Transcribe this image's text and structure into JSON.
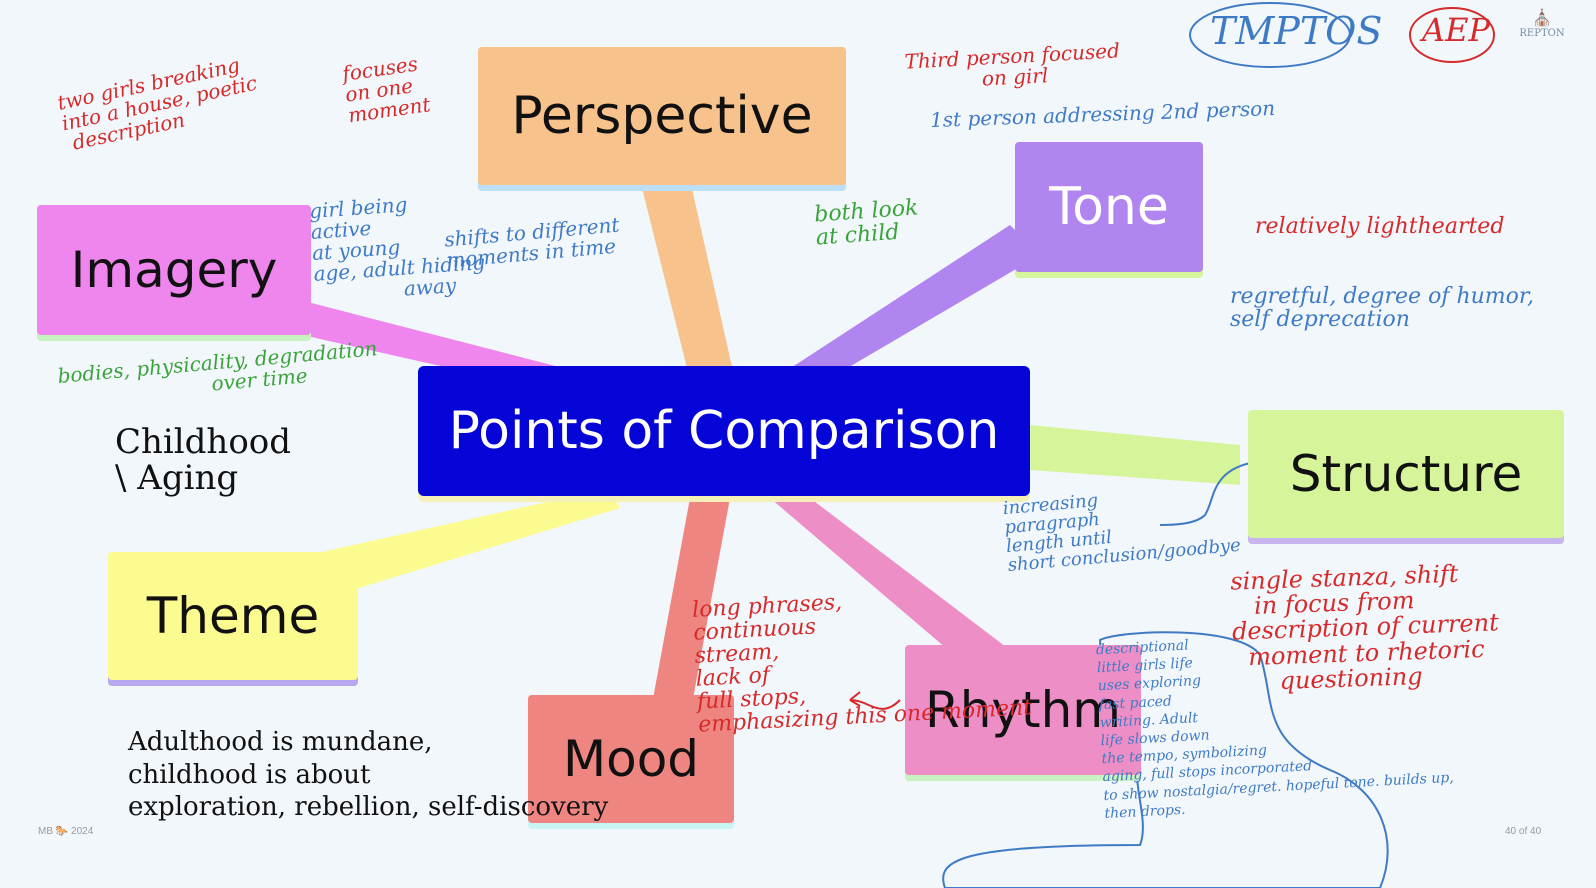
{
  "slide": {
    "center_label": "Points of Comparison",
    "nodes": {
      "perspective": "Perspective",
      "tone": "Tone",
      "imagery": "Imagery",
      "structure": "Structure",
      "theme": "Theme",
      "mood": "Mood",
      "rhythm": "Rhythm"
    },
    "colors": {
      "center": "#0505d8",
      "perspective": "#f7c28c",
      "tone": "#b185f0",
      "imagery": "#ee86ee",
      "structure": "#d6f59a",
      "theme": "#fbfb8f",
      "mood": "#ee8580",
      "rhythm": "#ee8ec6"
    },
    "header": {
      "circled_text": "TMPTOS",
      "circled_abbrev": "AEP",
      "school_logo": "REPTON"
    },
    "annotations": {
      "imagery_red": "two girls breaking\ninto a house, poetic\n description",
      "perspective_red_left": "focuses\non one\nmoment",
      "perspective_red_right": "Third person focused\n            on girl",
      "perspective_blue_right": "1st person addressing 2nd person",
      "perspective_blue_below": "shifts to different\nmoments in time",
      "perspective_green": "both look\nat child",
      "imagery_blue": "girl being\nactive\nat young\nage, adult hiding\n              away",
      "imagery_green": "bodies, physicality, degradation\n                        over time",
      "tone_red": "relatively lighthearted",
      "tone_blue": "regretful, degree of humor,\nself deprecation",
      "structure_blue": "increasing\nparagraph\nlength until\nshort conclusion/goodbye",
      "structure_red": "single stanza, shift\n   in focus from\ndescription of current\n  moment to rhetoric\n      questioning",
      "childhood_aging": "Childhood\n\\ Aging",
      "theme_black": "Adulthood is mundane,\nchildhood is about\nexploration, rebellion, self-discovery",
      "rhythm_red": "long phrases,\ncontinuous\nstream,\nlack of\nfull stops,\nemphasizing this one moment",
      "rhythm_blue": "descriptional\nlittle girls life\nuses exploring\nfast paced\nwriting. Adult\nlife slows down\nthe tempo, symbolizing\naging, full stops incorporated\nto show nostalgia/regret. hopeful tone. builds up,\nthen drops."
    },
    "footer": {
      "left": "MB 🐎 2024",
      "right": "40 of 40"
    }
  }
}
